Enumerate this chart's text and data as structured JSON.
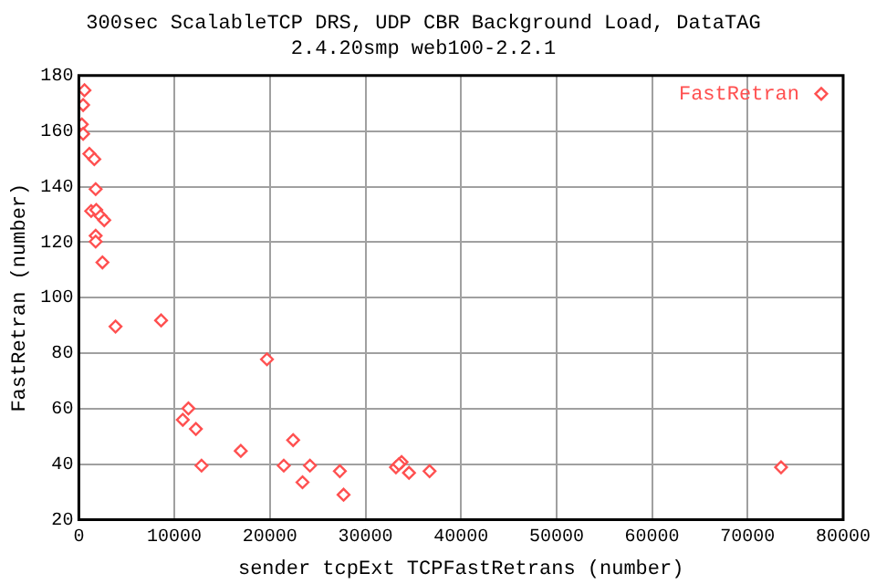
{
  "chart_data": {
    "type": "scatter",
    "title": "300sec ScalableTCP DRS, UDP CBR Background Load, DataTAG",
    "subtitle": "2.4.20smp web100-2.2.1",
    "xlabel": "sender tcpExt TCPFastRetrans (number)",
    "ylabel": "FastRetran (number)",
    "xlim": [
      0,
      80000
    ],
    "xticks": [
      0,
      10000,
      20000,
      30000,
      40000,
      50000,
      60000,
      70000,
      80000
    ],
    "ylim": [
      20,
      180
    ],
    "yticks": [
      20,
      40,
      60,
      80,
      100,
      120,
      140,
      160,
      180
    ],
    "grid": true,
    "legend": "top right",
    "marker": "diamond",
    "series": [
      {
        "name": "FastRetran",
        "color": "#ff5050",
        "x": [
          590,
          450,
          310,
          450,
          1100,
          1620,
          1760,
          1290,
          1820,
          2270,
          2660,
          1760,
          1760,
          2470,
          3840,
          8610,
          19690,
          11470,
          10880,
          12250,
          22430,
          16950,
          12840,
          21450,
          24190,
          27320,
          23410,
          27710,
          33190,
          33780,
          33500,
          34560,
          36710,
          73500
        ],
        "values": [
          174.7,
          169.4,
          162.4,
          159,
          151.8,
          149.9,
          139.1,
          131.2,
          131.6,
          129.4,
          127.9,
          122.3,
          120.2,
          112.7,
          89.6,
          91.8,
          77.8,
          60.1,
          56,
          52.7,
          48.7,
          44.8,
          39.5,
          39.5,
          39.5,
          37.5,
          33.5,
          29,
          38.9,
          40.8,
          40,
          36.9,
          37.5,
          38.9
        ]
      }
    ]
  }
}
